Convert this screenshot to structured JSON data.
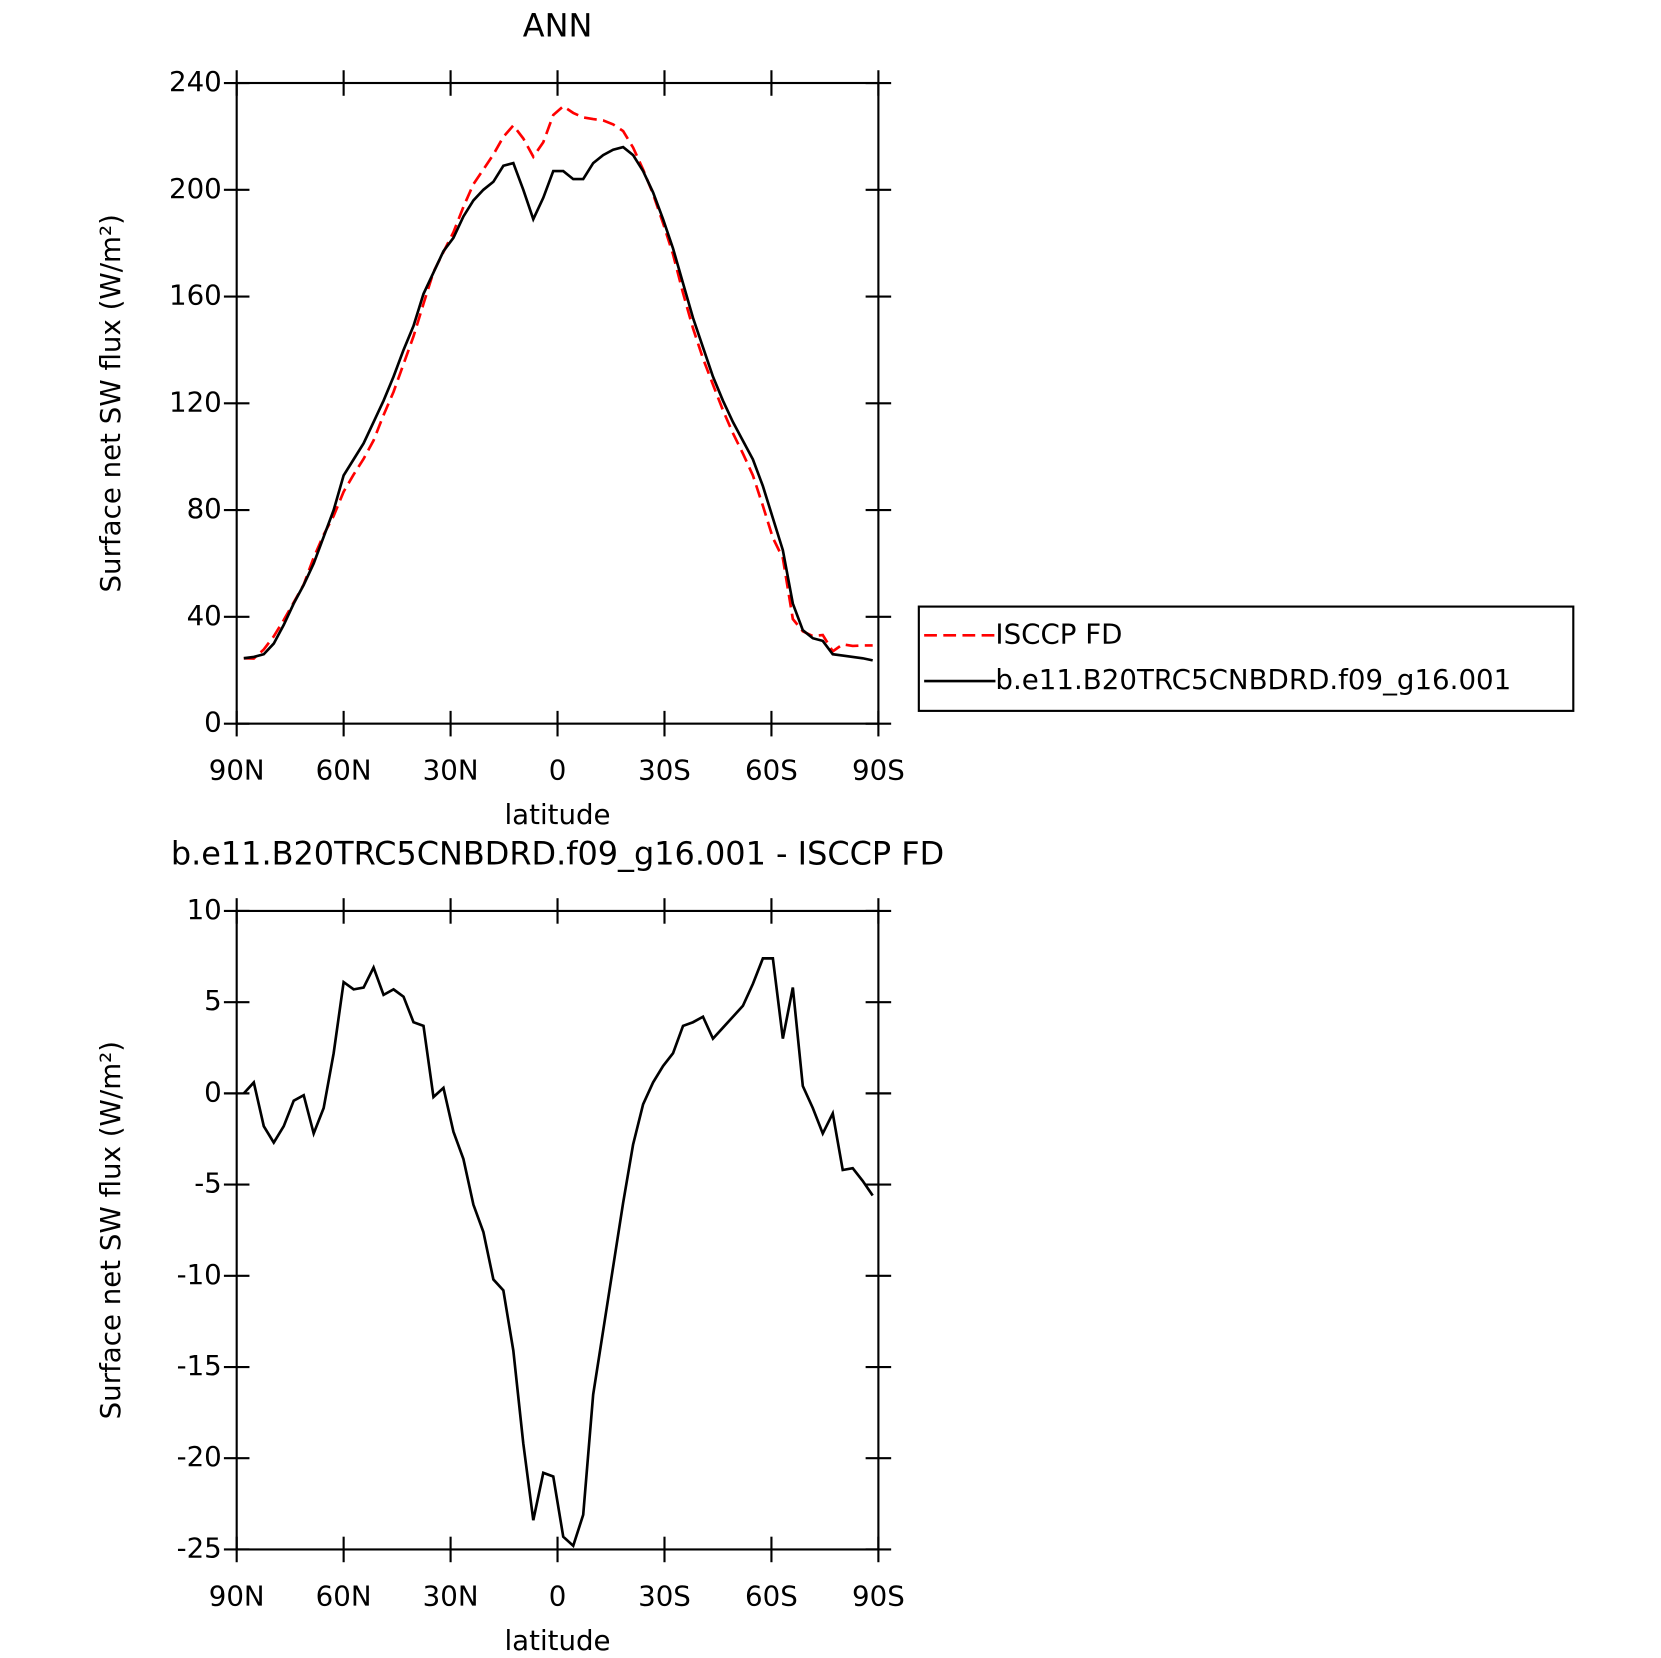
{
  "chart_data": [
    {
      "type": "line",
      "title": "ANN",
      "x_label": "latitude",
      "y_label": "Surface net SW flux (W/m²)",
      "xlim": [
        90,
        -90
      ],
      "xticks": [
        {
          "value": 90,
          "label": "90N"
        },
        {
          "value": 60,
          "label": "60N"
        },
        {
          "value": 30,
          "label": "30N"
        },
        0,
        {
          "value": -30,
          "label": "30S"
        },
        {
          "value": -60,
          "label": "60S"
        },
        {
          "value": -90,
          "label": "90S"
        }
      ],
      "ylim": [
        0,
        240
      ],
      "yticks": [
        0,
        40,
        80,
        120,
        160,
        200,
        240
      ],
      "legend": "right",
      "x": [
        88,
        85.2,
        82.4,
        79.6,
        76.8,
        74,
        71.2,
        68.4,
        65.6,
        62.8,
        60,
        57.2,
        54.4,
        51.6,
        48.8,
        46,
        43.2,
        40.4,
        37.6,
        34.8,
        32,
        29.2,
        26.4,
        23.6,
        20.8,
        18,
        15.2,
        12.4,
        9.6,
        6.8,
        4,
        1.2,
        -1.6,
        -4.4,
        -7.2,
        -10,
        -12.8,
        -15.6,
        -18.4,
        -21.2,
        -24,
        -26.8,
        -29.6,
        -32.4,
        -35.2,
        -38,
        -40.8,
        -43.6,
        -46.4,
        -49.2,
        -52,
        -54.8,
        -57.6,
        -60.4,
        -63.2,
        -66,
        -68.8,
        -71.6,
        -74.4,
        -77.2,
        -80,
        -82.8,
        -85.6,
        -88.4
      ],
      "series": [
        {
          "name": "ISCCP FD",
          "color": "#ff0000",
          "dashed": true,
          "values": [
            24.5,
            24.4,
            27.8,
            32.7,
            38.8,
            45.4,
            52.1,
            62.2,
            70.8,
            77.8,
            86.9,
            93.3,
            99.2,
            106.1,
            115.6,
            124.3,
            134.7,
            145.1,
            157.3,
            169.2,
            176.7,
            184.1,
            193.6,
            202.1,
            207.6,
            213.2,
            219.8,
            224.1,
            219.2,
            212.4,
            217.8,
            228,
            231.3,
            228.8,
            227.1,
            226.5,
            226,
            224.5,
            222,
            215.8,
            207.6,
            198.4,
            187.5,
            175.8,
            161.3,
            148.1,
            136.8,
            127,
            117.4,
            108.8,
            101.2,
            93,
            81.6,
            69.6,
            62,
            39.2,
            34.6,
            32.8,
            33.2,
            27.1,
            29.7,
            29.1,
            29.3,
            29.3
          ]
        },
        {
          "name": "b.e11.B20TRC5CNBDRD.f09_g16.001",
          "color": "#000000",
          "dashed": false,
          "values": [
            24.5,
            25,
            26,
            30,
            37,
            45,
            52,
            60,
            70,
            80,
            93,
            99,
            105,
            113,
            121,
            130,
            140,
            149,
            161,
            169,
            177,
            182,
            190,
            196,
            200,
            203,
            209,
            210,
            200,
            189,
            197,
            207,
            207,
            204,
            204,
            210,
            213,
            215,
            216,
            213,
            207,
            199,
            189,
            178,
            165,
            152,
            141,
            130,
            121,
            113,
            106,
            99,
            89,
            77,
            65,
            45,
            35,
            32,
            31,
            26,
            25.5,
            25,
            24.5,
            23.7
          ]
        }
      ]
    },
    {
      "type": "line",
      "title": "b.e11.B20TRC5CNBDRD.f09_g16.001 - ISCCP FD",
      "x_label": "latitude",
      "y_label": "Surface net SW flux (W/m²)",
      "xlim": [
        90,
        -90
      ],
      "xticks": [
        {
          "value": 90,
          "label": "90N"
        },
        {
          "value": 60,
          "label": "60N"
        },
        {
          "value": 30,
          "label": "30N"
        },
        0,
        {
          "value": -30,
          "label": "30S"
        },
        {
          "value": -60,
          "label": "60S"
        },
        {
          "value": -90,
          "label": "90S"
        }
      ],
      "ylim": [
        -25,
        10
      ],
      "yticks": [
        -25,
        -20,
        -15,
        -10,
        -5,
        0,
        5,
        10
      ],
      "x": [
        88,
        85.2,
        82.4,
        79.6,
        76.8,
        74,
        71.2,
        68.4,
        65.6,
        62.8,
        60,
        57.2,
        54.4,
        51.6,
        48.8,
        46,
        43.2,
        40.4,
        37.6,
        34.8,
        32,
        29.2,
        26.4,
        23.6,
        20.8,
        18,
        15.2,
        12.4,
        9.6,
        6.8,
        4,
        1.2,
        -1.6,
        -4.4,
        -7.2,
        -10,
        -12.8,
        -15.6,
        -18.4,
        -21.2,
        -24,
        -26.8,
        -29.6,
        -32.4,
        -35.2,
        -38,
        -40.8,
        -43.6,
        -46.4,
        -49.2,
        -52,
        -54.8,
        -57.6,
        -60.4,
        -63.2,
        -66,
        -68.8,
        -71.6,
        -74.4,
        -77.2,
        -80,
        -82.8,
        -85.6,
        -88.4
      ],
      "series": [
        {
          "color": "#000000",
          "dashed": false,
          "values": [
            0,
            0.6,
            -1.8,
            -2.7,
            -1.8,
            -0.4,
            -0.1,
            -2.2,
            -0.8,
            2.2,
            6.1,
            5.7,
            5.8,
            6.9,
            5.4,
            5.7,
            5.3,
            3.9,
            3.7,
            -0.2,
            0.3,
            -2.1,
            -3.6,
            -6.1,
            -7.6,
            -10.2,
            -10.8,
            -14.1,
            -19.2,
            -23.4,
            -20.8,
            -21,
            -24.3,
            -24.8,
            -23.1,
            -16.5,
            -13,
            -9.5,
            -6,
            -2.8,
            -0.6,
            0.6,
            1.5,
            2.2,
            3.7,
            3.9,
            4.2,
            3,
            3.6,
            4.2,
            4.8,
            6,
            7.4,
            7.4,
            3,
            5.8,
            0.4,
            -0.8,
            -2.2,
            -1.1,
            -4.2,
            -4.1,
            -4.8,
            -5.6
          ]
        }
      ]
    }
  ]
}
